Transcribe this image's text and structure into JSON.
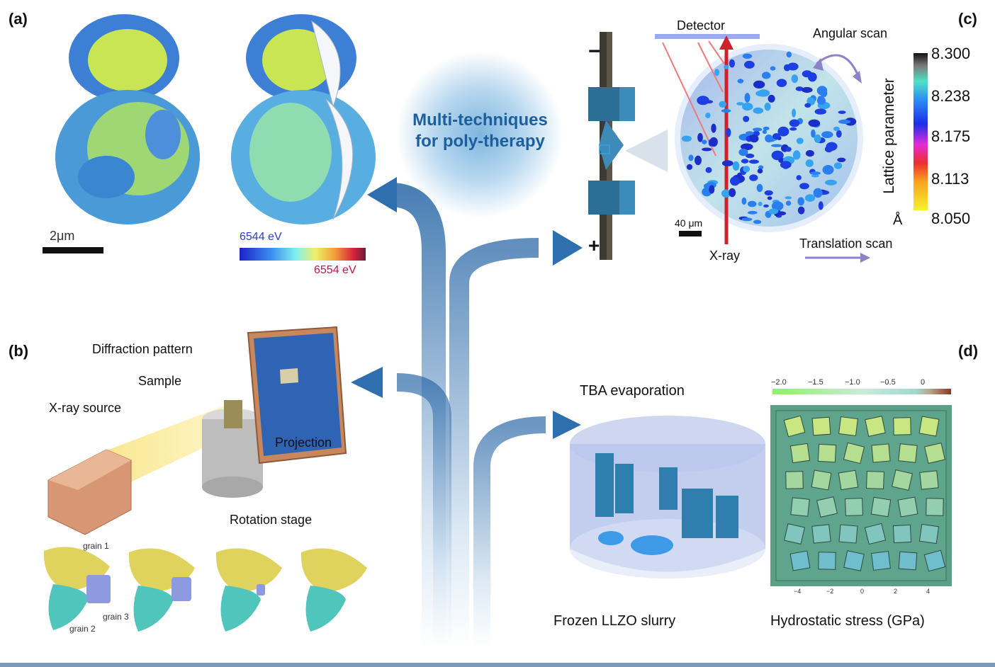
{
  "panels": {
    "a": "(a)",
    "b": "(b)",
    "c": "(c)",
    "d": "(d)"
  },
  "center": {
    "title_line1": "Multi-techniques",
    "title_line2": "for poly-therapy"
  },
  "panel_a": {
    "scale_bar": "2μm",
    "colorbar_min": "6544 eV",
    "colorbar_max": "6554 eV"
  },
  "panel_b": {
    "diffraction_pattern": "Diffraction pattern",
    "sample": "Sample",
    "xray_source": "X-ray source",
    "projection": "Projection",
    "rotation_stage": "Rotation stage",
    "grain1": "grain 1",
    "grain2": "grain 2",
    "grain3": "grain 3"
  },
  "panel_c": {
    "detector": "Detector",
    "angular_scan": "Angular scan",
    "scale_bar": "40 μm",
    "xray": "X-ray",
    "translation_scan": "Translation scan",
    "minus": "−",
    "plus": "+",
    "colorbar_title": "Lattice parameter",
    "unit": "Å",
    "ticks": [
      "8.300",
      "8.238",
      "8.175",
      "8.113",
      "8.050"
    ]
  },
  "panel_d": {
    "tba": "TBA evaporation",
    "frozen": "Frozen LLZO slurry",
    "hydrostatic": "Hydrostatic stress (GPa)",
    "colorbar_ticks": [
      "−2.0",
      "−1.5",
      "−1.0",
      "−0.5",
      "0"
    ],
    "x_ticks": [
      "−4",
      "−2",
      "0",
      "2",
      "4"
    ]
  },
  "colors": {
    "accent_blue": "#1d5f9c",
    "arrow_blue": "#2f6fb0",
    "xray_red": "#d0202a",
    "scan_purple": "#8d82c6"
  }
}
